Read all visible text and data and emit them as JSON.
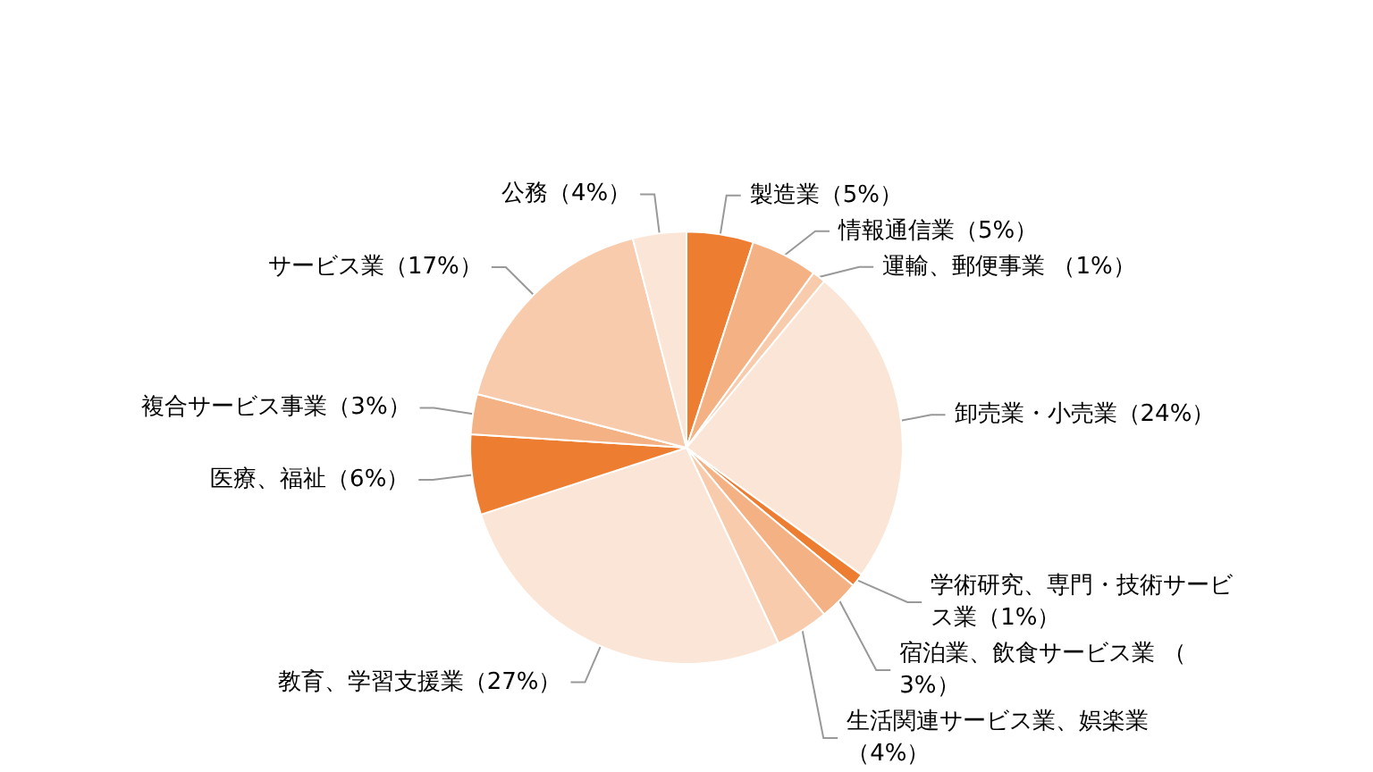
{
  "chart_data": {
    "type": "pie",
    "categories": [
      "製造業（5%）",
      "情報通信業（5%）",
      "運輸、郵便事業 （1%）",
      "卸売業・小売業（24%）",
      "学術研究、専門・技術サービス業（1%）",
      "宿泊業、飲食サービス業 （3%）",
      "生活関連サービス業、娯楽業（4%）",
      "教育、学習支援業（27%）",
      "医療、福祉（6%）",
      "複合サービス事業（3%）",
      "サービス業（17%）",
      "公務（4%）"
    ],
    "values": [
      5,
      5,
      1,
      24,
      1,
      3,
      4,
      27,
      6,
      3,
      17,
      4
    ],
    "colors": [
      "#ed7d31",
      "#f4b183",
      "#f8cbad",
      "#fbe5d6",
      "#ed7d31",
      "#f4b183",
      "#f8cbad",
      "#fbe5d6",
      "#ed7d31",
      "#f4b183",
      "#f8cbad",
      "#fbe5d6"
    ],
    "legend": false
  }
}
